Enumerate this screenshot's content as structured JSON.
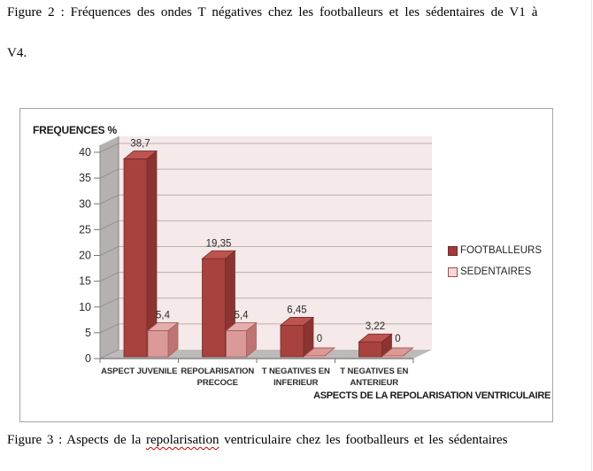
{
  "page": {
    "figure2_caption_line1": "Figure 2 : Fréquences des ondes T négatives chez les footballeurs et les sédentaires de V1 à",
    "figure2_caption_line2": "V4.",
    "figure3_caption_prefix": "Figure 3 : Aspects de la ",
    "figure3_caption_word_misspelled": "repolarisation",
    "figure3_caption_suffix": " ventriculaire chez les footballeurs et les sédentaires"
  },
  "chart_data": {
    "type": "bar",
    "style": "3d-clustered-column",
    "ylabel": "FREQUENCES %",
    "xlabel": "ASPECTS DE LA REPOLARISATION VENTRICULAIRE",
    "categories": [
      [
        "ASPECT JUVENILE"
      ],
      [
        "REPOLARISATION",
        "PRECOCE"
      ],
      [
        "T NEGATIVES EN",
        "INFERIEUR"
      ],
      [
        "T NEGATIVES EN",
        "ANTERIEUR"
      ]
    ],
    "series": [
      {
        "name": "FOOTBALLEURS",
        "values": [
          38.7,
          19.35,
          6.45,
          3.22
        ],
        "labels": [
          "38,7",
          "19,35",
          "6,45",
          "3,22"
        ],
        "front": "#A8423E",
        "top": "#BD544F",
        "side": "#8C3431",
        "stroke": "#732B29",
        "legend_fill": "#A23B38",
        "legend_border": "#6E2A28"
      },
      {
        "name": "SEDENTAIRES",
        "values": [
          5.4,
          5.4,
          0,
          0
        ],
        "labels": [
          "5,4",
          "5,4",
          "0",
          "0"
        ],
        "front": "#DB9A98",
        "top": "#E5ADAB",
        "side": "#BD7472",
        "stroke": "#A05D5B",
        "legend_fill": "#F0D9D8",
        "legend_border": "#A84846"
      }
    ],
    "y_ticks": [
      0,
      5,
      10,
      15,
      20,
      25,
      30,
      35,
      40
    ],
    "ylim": [
      0,
      40
    ],
    "grid": true,
    "legend_position": "right",
    "colors": {
      "plot_bg": "#F5E9E9",
      "wall": "#B5B1B1",
      "floor": "#BEBABA",
      "gridline": "#BCAFAF",
      "wall_gridline": "#989292",
      "axis": "#7A7575",
      "edge": "#8A8585",
      "text": "#2B2B2B"
    }
  }
}
